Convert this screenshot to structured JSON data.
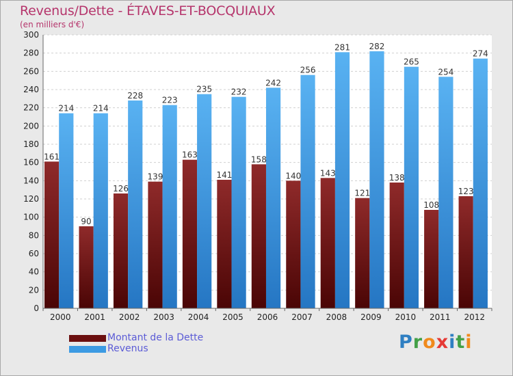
{
  "header": {
    "title": "Revenus/Dette - ÉTAVES-ET-BOCQUIAUX",
    "subtitle": "(en milliers d'€)"
  },
  "chart_data": {
    "type": "bar",
    "title": "Revenus/Dette - ÉTAVES-ET-BOCQUIAUX",
    "ylabel": "(en milliers d'€)",
    "categories": [
      "2000",
      "2001",
      "2002",
      "2003",
      "2004",
      "2005",
      "2006",
      "2007",
      "2008",
      "2009",
      "2010",
      "2011",
      "2012"
    ],
    "ylim": [
      0,
      300
    ],
    "yticks": [
      0,
      20,
      40,
      60,
      80,
      100,
      120,
      140,
      160,
      180,
      200,
      220,
      240,
      260,
      280,
      300
    ],
    "grid": true,
    "legend_position": "bottom-left",
    "series": [
      {
        "name": "Montant de la Dette",
        "color": "#7a1a1a",
        "values": [
          161,
          90,
          126,
          139,
          163,
          141,
          158,
          140,
          143,
          121,
          138,
          108,
          123
        ]
      },
      {
        "name": "Revenus",
        "color": "#3d9be3",
        "values": [
          214,
          214,
          228,
          223,
          235,
          232,
          242,
          256,
          281,
          282,
          265,
          254,
          274
        ]
      }
    ]
  },
  "legend": {
    "items": [
      {
        "label": "Montant de la Dette",
        "color": "#6b0f0f"
      },
      {
        "label": "Revenus",
        "color": "#3d9be3"
      }
    ]
  },
  "logo": {
    "letters": [
      {
        "char": "P",
        "color": "#2f7fc2"
      },
      {
        "char": "r",
        "color": "#43a047"
      },
      {
        "char": "o",
        "color": "#f08a1c"
      },
      {
        "char": "x",
        "color": "#e53935"
      },
      {
        "char": "i",
        "color": "#2f7fc2"
      },
      {
        "char": "t",
        "color": "#43a047"
      },
      {
        "char": "i",
        "color": "#f08a1c"
      }
    ]
  }
}
